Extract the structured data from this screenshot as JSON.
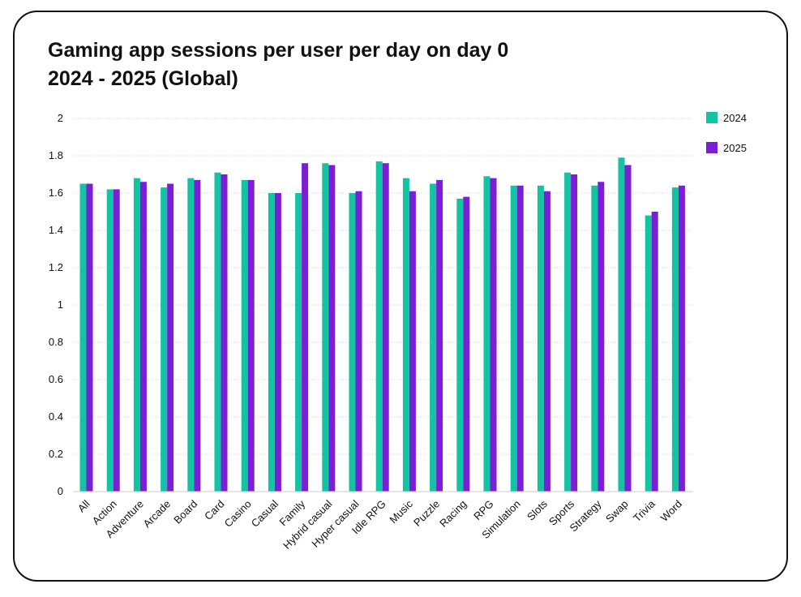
{
  "chart_data": {
    "type": "bar",
    "title": "Gaming app sessions per user per day on day 0",
    "subtitle": "2024 - 2025 (Global)",
    "xlabel": "",
    "ylabel": "",
    "ylim": [
      0,
      2
    ],
    "yticks": [
      "0",
      "0.2",
      "0.4",
      "0.6",
      "0.8",
      "1",
      "1.2",
      "1.4",
      "1.6",
      "1.8",
      "2"
    ],
    "grid": true,
    "legend_position": "right",
    "categories": [
      "All",
      "Action",
      "Adventure",
      "Arcade",
      "Board",
      "Card",
      "Casino",
      "Casual",
      "Family",
      "Hybrid casual",
      "Hyper casual",
      "Idle RPG",
      "Music",
      "Puzzle",
      "Racing",
      "RPG",
      "Simulation",
      "Slots",
      "Sports",
      "Strategy",
      "Swap",
      "Trivia",
      "Word"
    ],
    "series": [
      {
        "name": "2024",
        "color": "#12c3a4",
        "values": [
          1.65,
          1.62,
          1.68,
          1.63,
          1.68,
          1.71,
          1.67,
          1.6,
          1.6,
          1.76,
          1.6,
          1.77,
          1.68,
          1.65,
          1.57,
          1.69,
          1.64,
          1.64,
          1.71,
          1.64,
          1.79,
          1.48,
          1.63
        ]
      },
      {
        "name": "2025",
        "color": "#7b1fd6",
        "values": [
          1.65,
          1.62,
          1.66,
          1.65,
          1.67,
          1.7,
          1.67,
          1.6,
          1.76,
          1.75,
          1.61,
          1.76,
          1.61,
          1.67,
          1.58,
          1.68,
          1.64,
          1.61,
          1.7,
          1.66,
          1.75,
          1.5,
          1.64
        ]
      }
    ]
  }
}
